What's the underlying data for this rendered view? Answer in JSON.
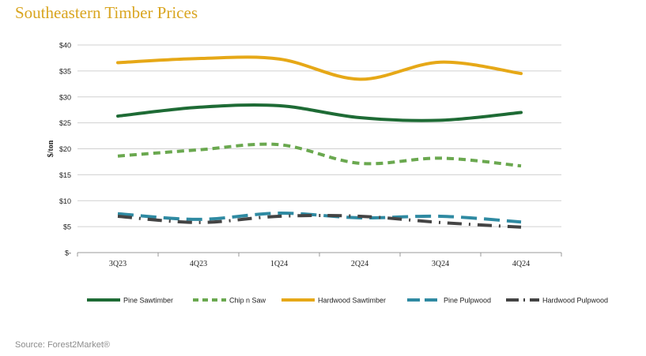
{
  "chart_data": {
    "type": "line",
    "title": "Southeastern Timber Prices",
    "xlabel": "",
    "ylabel": "$/ton",
    "categories": [
      "3Q23",
      "4Q23",
      "1Q24",
      "2Q24",
      "3Q24",
      "4Q24"
    ],
    "y_ticks": [
      0,
      5,
      10,
      15,
      20,
      25,
      30,
      35,
      40
    ],
    "y_tick_labels": [
      "$-",
      "$5",
      "$10",
      "$15",
      "$20",
      "$25",
      "$30",
      "$35",
      "$40"
    ],
    "ylim": [
      0,
      40
    ],
    "grid": true,
    "legend_position": "bottom",
    "series": [
      {
        "name": "Pine Sawtimber",
        "color": "#1e6b35",
        "style": "solid",
        "values": [
          26.3,
          28.0,
          28.3,
          26.0,
          25.5,
          27.0
        ]
      },
      {
        "name": "Chip n Saw",
        "color": "#6aa84f",
        "style": "dash",
        "values": [
          18.6,
          19.8,
          20.8,
          17.2,
          18.2,
          16.7
        ]
      },
      {
        "name": "Hardwood Sawtimber",
        "color": "#e6a817",
        "style": "solid",
        "values": [
          36.6,
          37.4,
          37.3,
          33.4,
          36.7,
          34.5
        ]
      },
      {
        "name": "Pine Pulpwood",
        "color": "#2f8aa2",
        "style": "longdash",
        "values": [
          7.5,
          6.4,
          7.6,
          6.7,
          7.0,
          5.9
        ]
      },
      {
        "name": "Hardwood Pulpwood",
        "color": "#444444",
        "style": "dashdot",
        "values": [
          7.0,
          5.8,
          7.0,
          7.0,
          5.8,
          4.9
        ]
      }
    ]
  },
  "source": "Source: Forest2Market®"
}
